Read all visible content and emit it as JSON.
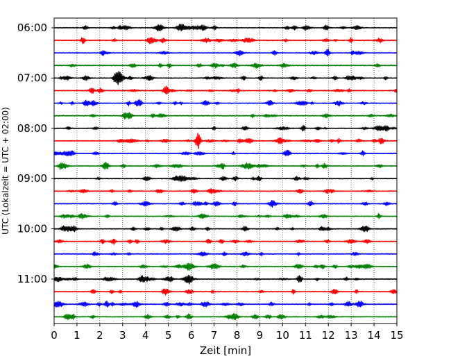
{
  "chart_data": {
    "type": "line",
    "title": "",
    "xlabel": "Zeit  [min]",
    "ylabel": "UTC (Lokalzeit = UTC + 02:00)",
    "xlim": [
      0,
      15
    ],
    "x_ticks": [
      0,
      1,
      2,
      3,
      4,
      5,
      6,
      7,
      8,
      9,
      10,
      11,
      12,
      13,
      14,
      15
    ],
    "x_tick_labels": [
      "0",
      "1",
      "2",
      "3",
      "4",
      "5",
      "6",
      "7",
      "8",
      "9",
      "10",
      "11",
      "12",
      "13",
      "14",
      "15"
    ],
    "y_tick_labels": [
      "06:00",
      "07:00",
      "08:00",
      "09:00",
      "10:00",
      "11:00"
    ],
    "row_start_times": [
      "06:00",
      "06:15",
      "06:30",
      "06:45",
      "07:00",
      "07:15",
      "07:30",
      "07:45",
      "08:00",
      "08:15",
      "08:30",
      "08:45",
      "09:00",
      "09:15",
      "09:30",
      "09:45",
      "10:00",
      "10:15",
      "10:30",
      "10:45",
      "11:00",
      "11:15",
      "11:30",
      "11:45"
    ],
    "row_minutes_per_line": 15,
    "color_cycle": [
      "#000000",
      "#ff0000",
      "#0000ff",
      "#008000"
    ],
    "grid": "vertical dotted lines at each minute",
    "legend": "none",
    "events": [
      {
        "row": 4,
        "minute": 2.85,
        "amplitude": 7
      },
      {
        "row": 9,
        "minute": 6.3,
        "amplitude": 11
      },
      {
        "row": 5,
        "minute": 1.65,
        "amplitude": 4
      },
      {
        "row": 0,
        "minute": 11.9,
        "amplitude": 4
      },
      {
        "row": 11,
        "minute": 0.3,
        "amplitude": 5
      },
      {
        "row": 23,
        "minute": 5.9,
        "amplitude": 4
      }
    ]
  }
}
